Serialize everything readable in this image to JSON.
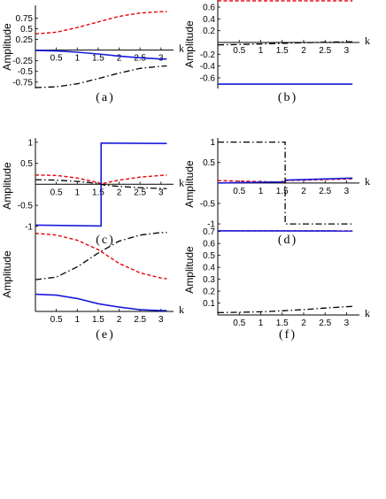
{
  "chart_data": [
    {
      "panel": "(a)",
      "type": "line",
      "xlabel": "k",
      "ylabel": "Amplitude",
      "xlim": [
        0,
        3.3
      ],
      "ylim": [
        -0.9,
        1.05
      ],
      "xticks": [
        "0.5",
        "1",
        "1.5",
        "2",
        "2.5",
        "3"
      ],
      "yticks": [
        "0.75",
        "0.5",
        "0.25",
        "-0.25",
        "-0.5",
        "-0.75"
      ],
      "series": [
        {
          "style": "red-dashed",
          "x": [
            0,
            0.5,
            1,
            1.5,
            2,
            2.5,
            3,
            3.14
          ],
          "y": [
            0.38,
            0.42,
            0.53,
            0.66,
            0.79,
            0.87,
            0.9,
            0.9
          ]
        },
        {
          "style": "blue-solid",
          "x": [
            0,
            0.5,
            1,
            1.5,
            2,
            2.5,
            3,
            3.14
          ],
          "y": [
            -0.01,
            -0.02,
            -0.05,
            -0.09,
            -0.14,
            -0.18,
            -0.21,
            -0.21
          ]
        },
        {
          "style": "black-dashdot",
          "x": [
            0,
            0.5,
            1,
            1.5,
            2,
            2.5,
            3,
            3.14
          ],
          "y": [
            -0.88,
            -0.86,
            -0.79,
            -0.67,
            -0.54,
            -0.43,
            -0.38,
            -0.37
          ]
        }
      ]
    },
    {
      "panel": "(b)",
      "type": "line",
      "xlabel": "k",
      "ylabel": "Amplitude",
      "xlim": [
        0,
        3.3
      ],
      "ylim": [
        -0.78,
        0.72
      ],
      "xticks": [
        "0.5",
        "1",
        "1.5",
        "2",
        "2.5",
        "3"
      ],
      "yticks": [
        "0.6",
        "0.4",
        "0.2",
        "-0.2",
        "-0.4",
        "-0.6"
      ],
      "series": [
        {
          "style": "red-dashed",
          "x": [
            0,
            3.14
          ],
          "y": [
            0.707,
            0.707
          ]
        },
        {
          "style": "blue-solid",
          "x": [
            0,
            3.14
          ],
          "y": [
            -0.707,
            -0.707
          ]
        },
        {
          "style": "black-dashdot",
          "x": [
            0,
            0.5,
            1,
            1.5,
            2,
            2.5,
            3,
            3.14
          ],
          "y": [
            -0.04,
            -0.035,
            -0.025,
            -0.015,
            -0.005,
            0.005,
            0.01,
            0.01
          ]
        }
      ]
    },
    {
      "panel": "(c)",
      "type": "line",
      "xlabel": "k",
      "ylabel": "Amplitude",
      "xlim": [
        0,
        3.3
      ],
      "ylim": [
        -1.15,
        1.1
      ],
      "xticks": [
        "0.5",
        "1",
        "1.5",
        "2",
        "2.5",
        "3"
      ],
      "yticks": [
        "1",
        "0.5",
        "-0.5",
        "-1"
      ],
      "series": [
        {
          "style": "red-dashed",
          "x": [
            0,
            0.5,
            1,
            1.5,
            1.57,
            1.65,
            2,
            2.5,
            3,
            3.14
          ],
          "y": [
            0.22,
            0.21,
            0.15,
            0.04,
            0.0,
            0.03,
            0.1,
            0.17,
            0.21,
            0.22
          ]
        },
        {
          "style": "blue-solid",
          "x": [
            0,
            1.57,
            1.57,
            3.14
          ],
          "y": [
            -0.97,
            -0.99,
            0.98,
            0.97
          ]
        },
        {
          "style": "black-dashdot",
          "x": [
            0,
            0.5,
            1,
            1.5,
            1.57,
            1.65,
            2,
            2.5,
            3,
            3.14
          ],
          "y": [
            0.11,
            0.1,
            0.07,
            0.02,
            0.0,
            -0.02,
            -0.05,
            -0.08,
            -0.1,
            -0.1
          ]
        }
      ]
    },
    {
      "panel": "(d)",
      "type": "line",
      "xlabel": "k",
      "ylabel": "Amplitude",
      "xlim": [
        0,
        3.3
      ],
      "ylim": [
        -1.15,
        1.1
      ],
      "xticks": [
        "0.5",
        "1",
        "1.5",
        "2",
        "2.5",
        "3"
      ],
      "yticks": [
        "1",
        "0.5",
        "-0.5",
        "-1"
      ],
      "series": [
        {
          "style": "red-dashed",
          "x": [
            0,
            1.57,
            1.57,
            3.14
          ],
          "y": [
            0.06,
            0.02,
            0.06,
            0.1
          ]
        },
        {
          "style": "blue-solid",
          "x": [
            0,
            1.57,
            1.57,
            3.14
          ],
          "y": [
            0.0,
            0.03,
            0.07,
            0.12
          ]
        },
        {
          "style": "black-dashdot",
          "x": [
            0,
            1.57,
            1.57,
            3.14
          ],
          "y": [
            1.0,
            1.0,
            -1.0,
            -1.0
          ]
        }
      ]
    },
    {
      "panel": "(e)",
      "type": "line",
      "xlabel": "k",
      "ylabel": "Amplitude",
      "xlim": [
        0,
        3.3
      ],
      "ylim": [
        0,
        1.0
      ],
      "xticks": [
        "0.5",
        "1",
        "1.5",
        "2",
        "2.5",
        "3"
      ],
      "yticks": [],
      "series": [
        {
          "style": "red-dashed",
          "x": [
            0,
            0.5,
            1,
            1.5,
            2,
            2.5,
            3,
            3.14
          ],
          "y": [
            0.91,
            0.89,
            0.83,
            0.72,
            0.56,
            0.45,
            0.39,
            0.38
          ]
        },
        {
          "style": "blue-solid",
          "x": [
            0,
            0.5,
            1,
            1.5,
            2,
            2.5,
            3,
            3.14
          ],
          "y": [
            0.2,
            0.19,
            0.15,
            0.09,
            0.05,
            0.02,
            0.01,
            0.01
          ]
        },
        {
          "style": "black-dashdot",
          "x": [
            0,
            0.5,
            1,
            1.5,
            2,
            2.5,
            3,
            3.14
          ],
          "y": [
            0.37,
            0.4,
            0.52,
            0.68,
            0.82,
            0.89,
            0.92,
            0.92
          ]
        }
      ]
    },
    {
      "panel": "(f)",
      "type": "line",
      "xlabel": "k",
      "ylabel": "Amplitude",
      "xlim": [
        0,
        3.3
      ],
      "ylim": [
        0,
        0.75
      ],
      "xticks": [
        "0.5",
        "1",
        "1.5",
        "2",
        "2.5",
        "3"
      ],
      "yticks": [
        "0.7",
        "0.6",
        "0.5",
        "0.4",
        "0.3",
        "0.2",
        "0.1"
      ],
      "series": [
        {
          "style": "red-dashed",
          "x": [
            0,
            3.14
          ],
          "y": [
            0.707,
            0.706
          ]
        },
        {
          "style": "blue-solid",
          "x": [
            0,
            3.14
          ],
          "y": [
            0.706,
            0.705
          ]
        },
        {
          "style": "black-dashdot",
          "x": [
            0,
            0.5,
            1,
            1.5,
            2,
            2.5,
            3,
            3.14
          ],
          "y": [
            0.02,
            0.022,
            0.027,
            0.035,
            0.045,
            0.058,
            0.07,
            0.072
          ]
        }
      ]
    }
  ],
  "colors": {
    "red": "#e8000b",
    "blue": "#1a1adb",
    "black": "#000000"
  }
}
